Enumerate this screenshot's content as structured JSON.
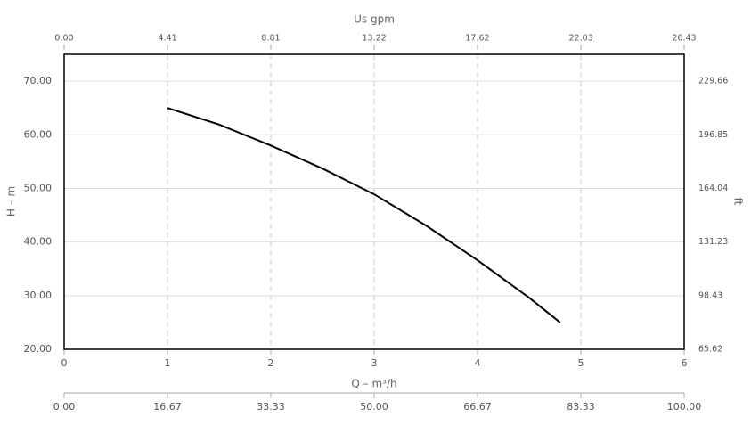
{
  "chart_data": {
    "type": "line",
    "x": [
      1,
      1.5,
      2,
      2.5,
      3,
      3.5,
      4,
      4.5,
      4.8
    ],
    "values": [
      65.0,
      61.9,
      58.0,
      53.7,
      48.9,
      43.1,
      36.6,
      29.6,
      25.0
    ],
    "color": "#000000",
    "xlabel": "Q – m³/h",
    "xlim": [
      0,
      6
    ],
    "xticks": [
      0,
      1,
      2,
      3,
      4,
      5,
      6
    ],
    "ylabel": "H – m",
    "ylim": [
      20,
      75
    ],
    "yticks": [
      {
        "value": 20,
        "label": "20.00"
      },
      {
        "value": 30,
        "label": "30.00"
      },
      {
        "value": 40,
        "label": "40.00"
      },
      {
        "value": 50,
        "label": "50.00"
      },
      {
        "value": 60,
        "label": "60.00"
      },
      {
        "value": 70,
        "label": "70.00"
      }
    ],
    "y2label": "ft",
    "y2lim": [
      65.62,
      246.06
    ],
    "y2ticks": [
      65.62,
      98.43,
      131.23,
      164.04,
      196.85,
      229.66
    ],
    "x2label": "Us gpm",
    "x2lim": [
      0,
      26.43
    ],
    "x2ticks": [
      {
        "value": 0,
        "label": "0.00"
      },
      4.41,
      8.81,
      13.22,
      17.62,
      22.03,
      26.43
    ],
    "x3lim": [
      0,
      100
    ],
    "x3ticks": [
      {
        "value": 0,
        "label": "0.00"
      },
      16.67,
      33.33,
      {
        "value": 50,
        "label": "50.00"
      },
      66.67,
      83.33,
      {
        "value": 100,
        "label": "100.00"
      }
    ],
    "grid": true
  }
}
